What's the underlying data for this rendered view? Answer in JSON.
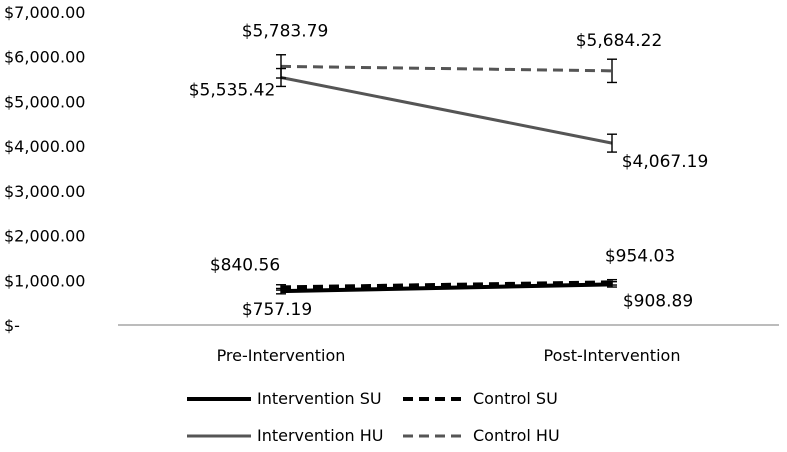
{
  "chart_data": {
    "type": "line",
    "title": "",
    "xlabel": "",
    "ylabel": "",
    "categories": [
      "Pre-Intervention",
      "Post-Intervention"
    ],
    "ylim": [
      0,
      7000
    ],
    "y_ticks": [
      0,
      1000,
      2000,
      3000,
      4000,
      5000,
      6000,
      7000
    ],
    "y_tick_labels": [
      "$-",
      "$1,000.00",
      "$2,000.00",
      "$3,000.00",
      "$4,000.00",
      "$5,000.00",
      "$6,000.00",
      "$7,000.00"
    ],
    "grid": false,
    "legend_position": "bottom",
    "series": [
      {
        "name": "Intervention SU",
        "values": [
          757.19,
          908.89
        ],
        "labels": [
          "$757.19",
          "$908.89"
        ],
        "color": "#000000",
        "dash": "solid",
        "error_bars": [
          60,
          60
        ]
      },
      {
        "name": "Control SU",
        "values": [
          840.56,
          954.03
        ],
        "labels": [
          "$840.56",
          "$954.03"
        ],
        "color": "#000000",
        "dash": "dashed",
        "error_bars": [
          60,
          60
        ]
      },
      {
        "name": "Intervention HU",
        "values": [
          5535.42,
          4067.19
        ],
        "labels": [
          "$5,535.42",
          "$4,067.19"
        ],
        "color": "#555555",
        "dash": "solid",
        "error_bars": [
          200,
          200
        ]
      },
      {
        "name": "Control HU",
        "values": [
          5783.79,
          5684.22
        ],
        "labels": [
          "$5,783.79",
          "$5,684.22"
        ],
        "color": "#555555",
        "dash": "dashed",
        "error_bars": [
          260,
          260
        ]
      }
    ]
  }
}
